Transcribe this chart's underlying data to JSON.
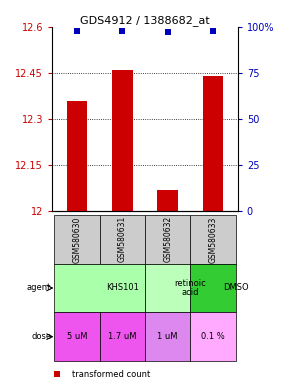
{
  "title": "GDS4912 / 1388682_at",
  "samples": [
    "GSM580630",
    "GSM580631",
    "GSM580632",
    "GSM580633"
  ],
  "bar_values": [
    12.36,
    12.46,
    12.07,
    12.44
  ],
  "percentile_values": [
    98,
    98,
    97,
    98
  ],
  "ylim": [
    12.0,
    12.6
  ],
  "yticks": [
    12.0,
    12.15,
    12.3,
    12.45,
    12.6
  ],
  "ytick_labels": [
    "12",
    "12.15",
    "12.3",
    "12.45",
    "12.6"
  ],
  "right_yticks": [
    0,
    25,
    50,
    75,
    100
  ],
  "right_ytick_labels": [
    "0",
    "25",
    "50",
    "75",
    "100%"
  ],
  "bar_color": "#cc0000",
  "dot_color": "#0000bb",
  "bar_width": 0.45,
  "agent_data": [
    {
      "label": "KHS101",
      "start": 0,
      "end": 2,
      "color": "#aaffaa"
    },
    {
      "label": "retinoic\nacid",
      "start": 2,
      "end": 3,
      "color": "#bbffbb"
    },
    {
      "label": "DMSO",
      "start": 3,
      "end": 4,
      "color": "#33cc33"
    }
  ],
  "dose_labels": [
    "5 uM",
    "1.7 uM",
    "1 uM",
    "0.1 %"
  ],
  "dose_colors": [
    "#ee55ee",
    "#ee55ee",
    "#dd88ee",
    "#ffaaff"
  ],
  "sample_bg": "#cccccc",
  "left_label_color": "#cc0000",
  "right_label_color": "#0000bb"
}
